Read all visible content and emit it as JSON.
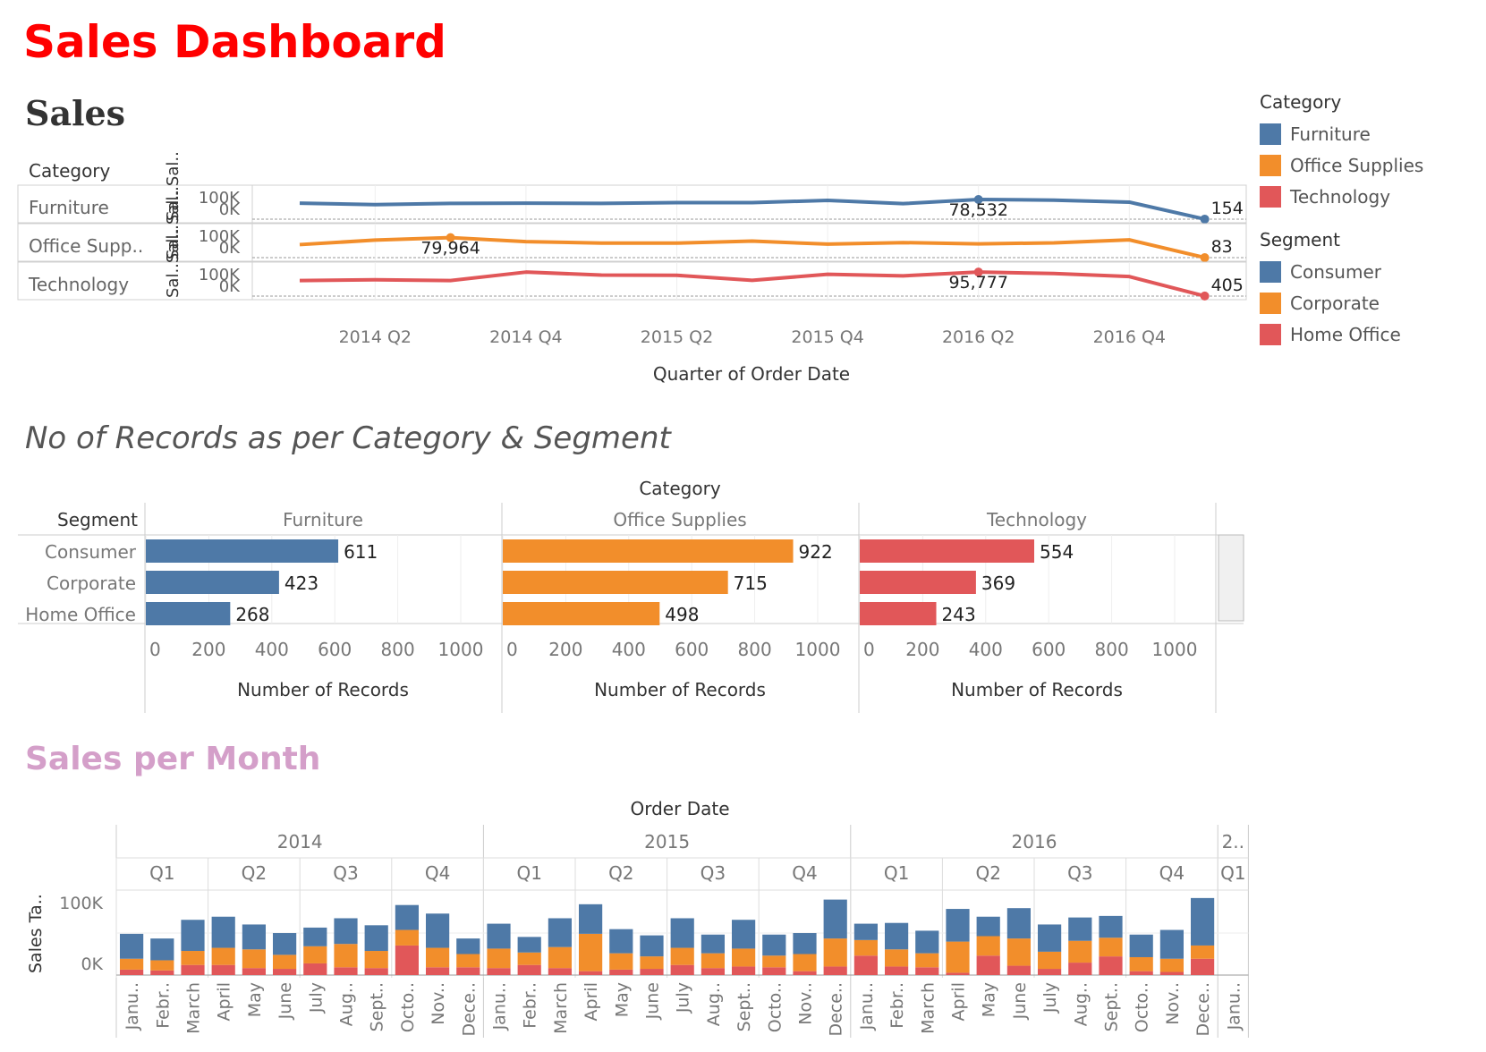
{
  "dashboard": {
    "title": "Sales Dashboard",
    "sales_title": "Sales",
    "records_title": "No of Records as per Category & Segment",
    "month_title": "Sales per Month"
  },
  "colors": {
    "blue": "#4e79a7",
    "orange": "#f28e2b",
    "red": "#e15759"
  },
  "legend": {
    "category_title": "Category",
    "categories": [
      "Furniture",
      "Office Supplies",
      "Technology"
    ],
    "segment_title": "Segment",
    "segments": [
      "Consumer",
      "Corporate",
      "Home Office"
    ]
  },
  "chart_data": [
    {
      "type": "line",
      "title": "Sales",
      "row_header": "Category",
      "rows": [
        "Furniture",
        "Office Supp..",
        "Technology"
      ],
      "row_axis_labels": [
        "Sal..Sal..",
        "Sal..Sal..",
        "Sal..Sal.."
      ],
      "axis_ticks": [
        "100K",
        "0K"
      ],
      "xlabel": "Quarter of Order Date",
      "x": [
        "2014 Q1",
        "2014 Q2",
        "2014 Q3",
        "2014 Q4",
        "2015 Q1",
        "2015 Q2",
        "2015 Q3",
        "2015 Q4",
        "2016 Q1",
        "2016 Q2",
        "2016 Q3",
        "2016 Q4",
        "2017 Q1"
      ],
      "x_tick_labels": [
        "2014 Q2",
        "2014 Q4",
        "2015 Q2",
        "2015 Q4",
        "2016 Q2",
        "2016 Q4"
      ],
      "series": [
        {
          "name": "Furniture",
          "values": [
            64000,
            58000,
            63000,
            64000,
            63000,
            66000,
            66000,
            75000,
            62000,
            78532,
            76000,
            68000,
            154
          ]
        },
        {
          "name": "Office Supplies",
          "values": [
            52000,
            70000,
            79964,
            64000,
            58000,
            58000,
            66000,
            54000,
            60000,
            55000,
            59000,
            71000,
            83
          ]
        },
        {
          "name": "Technology",
          "values": [
            62000,
            65000,
            62000,
            95777,
            84000,
            83000,
            63000,
            87000,
            81000,
            95777,
            90000,
            78000,
            405
          ]
        }
      ],
      "annotations": [
        {
          "series": "Furniture",
          "x": "2016 Q2",
          "label": "78,532"
        },
        {
          "series": "Furniture",
          "x": "2017 Q1",
          "label": "154"
        },
        {
          "series": "Office Supplies",
          "x": "2014 Q3",
          "label": "79,964"
        },
        {
          "series": "Office Supplies",
          "x": "2017 Q1",
          "label": "83"
        },
        {
          "series": "Technology",
          "x": "2016 Q2",
          "label": "95,777"
        },
        {
          "series": "Technology",
          "x": "2017 Q1",
          "label": "405"
        }
      ]
    },
    {
      "type": "bar",
      "title": "No of Records as per Category & Segment",
      "column_header": "Category",
      "row_header": "Segment",
      "categories": [
        "Consumer",
        "Corporate",
        "Home Office"
      ],
      "panels": [
        {
          "name": "Furniture",
          "values": [
            611,
            423,
            268
          ]
        },
        {
          "name": "Office Supplies",
          "values": [
            922,
            715,
            498
          ]
        },
        {
          "name": "Technology",
          "values": [
            554,
            369,
            243
          ]
        }
      ],
      "xlabel": "Number of Records",
      "xlim": [
        0,
        1100
      ],
      "x_ticks": [
        0,
        200,
        400,
        600,
        800,
        1000
      ]
    },
    {
      "type": "bar",
      "stacked": true,
      "title": "Sales per Month",
      "column_header": "Order Date",
      "ylabel": "Sales Ta..",
      "y_ticks": [
        "100K",
        "0K"
      ],
      "years": [
        "2014",
        "2015",
        "2016",
        "2.."
      ],
      "quarters": [
        "Q1",
        "Q2",
        "Q3",
        "Q4",
        "Q1",
        "Q2",
        "Q3",
        "Q4",
        "Q1",
        "Q2",
        "Q3",
        "Q4",
        "Q1"
      ],
      "months": [
        "Janu..",
        "Febr..",
        "March",
        "April",
        "May",
        "June",
        "July",
        "Aug..",
        "Sept..",
        "Octo..",
        "Nov..",
        "Dece..",
        "Janu..",
        "Febr..",
        "March",
        "April",
        "May",
        "June",
        "July",
        "Aug..",
        "Sept..",
        "Octo..",
        "Nov..",
        "Dece..",
        "Janu..",
        "Febr..",
        "March",
        "April",
        "May",
        "June",
        "July",
        "Aug..",
        "Sept..",
        "Octo..",
        "Nov..",
        "Dece..",
        "Janu.."
      ],
      "series": [
        {
          "name": "Home Office",
          "values": [
            7000,
            6000,
            13000,
            13000,
            9000,
            8000,
            15000,
            10000,
            9000,
            38000,
            10000,
            10000,
            9000,
            13000,
            9000,
            5000,
            7000,
            8000,
            13000,
            9000,
            11000,
            10000,
            5000,
            11000,
            25000,
            11000,
            10000,
            3000,
            25000,
            12000,
            8000,
            16000,
            24000,
            5000,
            4000,
            21000,
            0
          ]
        },
        {
          "name": "Corporate",
          "values": [
            14000,
            13000,
            18000,
            22000,
            24000,
            18000,
            22000,
            30000,
            22000,
            20000,
            25000,
            17000,
            25000,
            16000,
            27000,
            48000,
            21000,
            16000,
            22000,
            19000,
            23000,
            15000,
            22000,
            36000,
            20000,
            22000,
            18000,
            40000,
            25000,
            35000,
            22000,
            28000,
            24000,
            18000,
            17000,
            17000,
            0
          ]
        },
        {
          "name": "Consumer",
          "values": [
            32000,
            28000,
            40000,
            40000,
            32000,
            28000,
            24000,
            33000,
            33000,
            32000,
            44000,
            20000,
            32000,
            20000,
            37000,
            38000,
            31000,
            27000,
            38000,
            24000,
            37000,
            27000,
            27000,
            50000,
            21000,
            34000,
            29000,
            42000,
            25000,
            39000,
            35000,
            30000,
            28000,
            29000,
            37000,
            61000,
            0
          ]
        }
      ],
      "ylim": [
        0,
        130000
      ]
    }
  ]
}
